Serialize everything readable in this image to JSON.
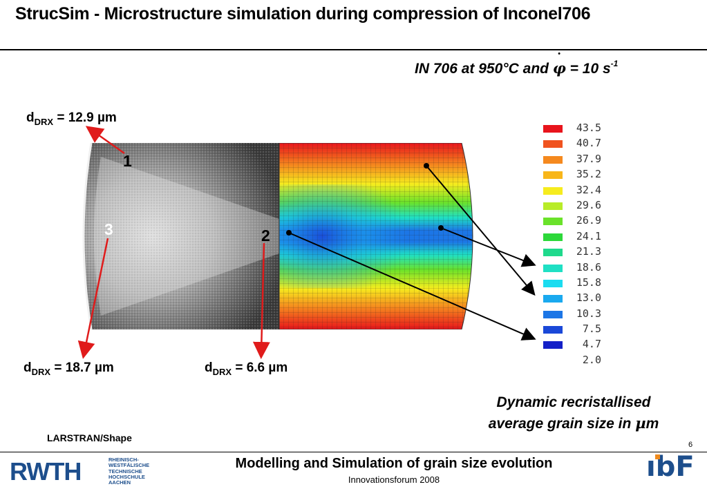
{
  "header": {
    "title": "StrucSim - Microstructure simulation during compression of Inconel706"
  },
  "subtitle": {
    "text": "IN 706 at 950°C and ",
    "symbol": "φ",
    "tail": " = 10 s",
    "exponent": "-1"
  },
  "labels": {
    "d_label_1": {
      "d": "d",
      "sub": "DRX",
      "value": " = 12.9 µm"
    },
    "d_label_3": {
      "d": "d",
      "sub": "DRX",
      "value": " = 18.7 µm"
    },
    "d_label_2": {
      "d": "d",
      "sub": "DRX",
      "value": " = 6.6 µm"
    },
    "num_1": "1",
    "num_2": "2",
    "num_3": "3"
  },
  "legend": {
    "entries": [
      {
        "value": "43.5",
        "color": "#e8141c"
      },
      {
        "value": "40.7",
        "color": "#f0531f"
      },
      {
        "value": "37.9",
        "color": "#f5891e"
      },
      {
        "value": "35.2",
        "color": "#f8b61a"
      },
      {
        "value": "32.4",
        "color": "#f6ec1e"
      },
      {
        "value": "29.6",
        "color": "#b8ec28"
      },
      {
        "value": "26.9",
        "color": "#6ae22a"
      },
      {
        "value": "24.1",
        "color": "#2dd83a"
      },
      {
        "value": "21.3",
        "color": "#1fd98c"
      },
      {
        "value": "18.6",
        "color": "#1fe0c4"
      },
      {
        "value": "15.8",
        "color": "#1bdcf0"
      },
      {
        "value": "13.0",
        "color": "#1aa9ef"
      },
      {
        "value": "10.3",
        "color": "#1c76e6"
      },
      {
        "value": "7.5",
        "color": "#1a48d8"
      },
      {
        "value": "4.7",
        "color": "#1420c8"
      },
      {
        "value": "2.0",
        "color": ""
      }
    ]
  },
  "caption": {
    "line1": "Dynamic recristallised",
    "line2_text": "average grain size in ",
    "line2_unit_mu": "µ",
    "line2_unit_m": "m"
  },
  "source_note": "LARSTRAN/Shape",
  "page_number": "6",
  "footer": {
    "title": "Modelling and Simulation of grain size evolution",
    "subtitle": "Innovationsforum 2008",
    "rwth_logo": "RWTH",
    "rwth_lines": [
      "RHEINISCH-",
      "WESTFÄLISCHE",
      "TECHNISCHE",
      "HOCHSCHULE",
      "AACHEN"
    ],
    "ibf_logo": "ıbF"
  },
  "colors": {
    "brand_blue": "#1d4e8c",
    "brand_orange": "#ef8a1d",
    "arrow_red": "#e01b1b"
  }
}
